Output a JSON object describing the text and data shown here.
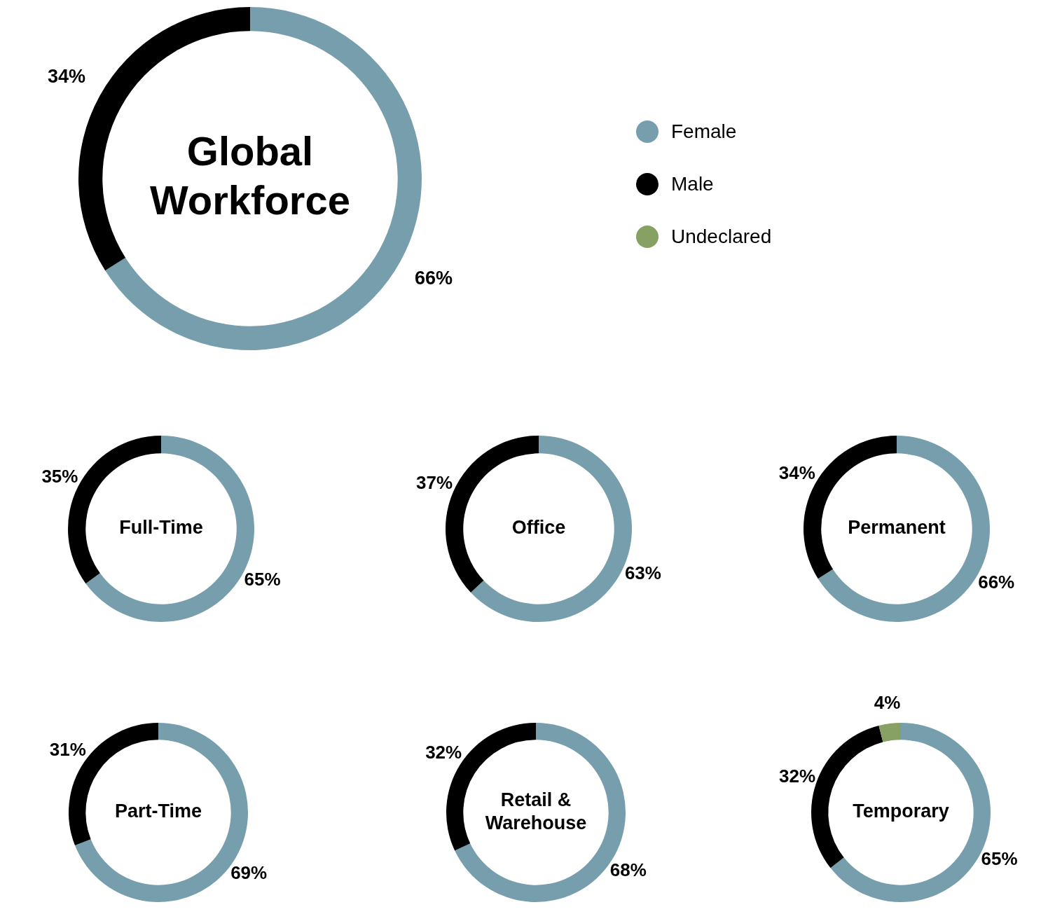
{
  "chart_data": [
    {
      "type": "donut",
      "title": "Global Workforce",
      "categories": [
        "Female",
        "Male",
        "Undeclared"
      ],
      "values": [
        66,
        34,
        null
      ],
      "colors": [
        "#769eac",
        "#000000",
        "#87a064"
      ],
      "value_labels": [
        "66%",
        "34%",
        null
      ],
      "legend": "right"
    },
    {
      "type": "donut",
      "title": "Full-Time",
      "categories": [
        null,
        null
      ],
      "values": [
        65,
        35
      ],
      "colors": [
        "#769eac",
        "#000000"
      ],
      "value_labels": [
        "65%",
        "35%"
      ]
    },
    {
      "type": "donut",
      "title": "Office",
      "categories": [
        null,
        null
      ],
      "values": [
        63,
        37
      ],
      "colors": [
        "#769eac",
        "#000000"
      ],
      "value_labels": [
        "63%",
        "37%"
      ]
    },
    {
      "type": "donut",
      "title": "Permanent",
      "categories": [
        null,
        null
      ],
      "values": [
        66,
        34
      ],
      "colors": [
        "#769eac",
        "#000000"
      ],
      "value_labels": [
        "66%",
        "34%"
      ]
    },
    {
      "type": "donut",
      "title": "Part-Time",
      "categories": [
        null,
        null
      ],
      "values": [
        69,
        31
      ],
      "colors": [
        "#769eac",
        "#000000"
      ],
      "value_labels": [
        "69%",
        "31%"
      ]
    },
    {
      "type": "donut",
      "title": "Retail & Warehouse",
      "categories": [
        null,
        null
      ],
      "values": [
        68,
        32
      ],
      "colors": [
        "#769eac",
        "#000000"
      ],
      "value_labels": [
        "68%",
        "32%"
      ]
    },
    {
      "type": "donut",
      "title": "Temporary",
      "categories": [
        null,
        null,
        null
      ],
      "values": [
        65,
        32,
        4
      ],
      "colors": [
        "#769eac",
        "#000000",
        "#87a064"
      ],
      "value_labels": [
        "65%",
        "32%",
        "4%"
      ]
    }
  ]
}
